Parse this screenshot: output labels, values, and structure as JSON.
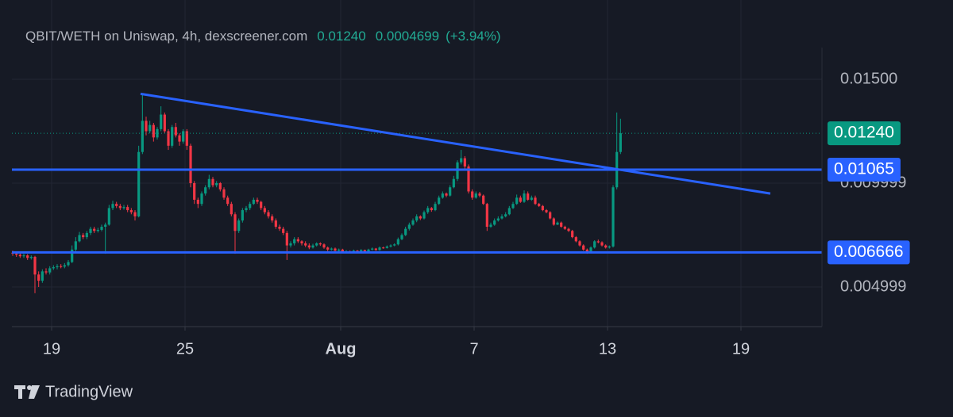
{
  "chart_data": {
    "type": "candlestick",
    "header": {
      "title": "QBIT/WETH on Uniswap, 4h, dexscreener.com",
      "change": "0.0004699",
      "change_pct": "(+3.94%)"
    },
    "last_price": {
      "value": 0.0124,
      "label": "0.01240"
    },
    "up_color": "#089981",
    "down_color": "#f23645",
    "line_color": "#2962ff",
    "grid": true,
    "xlim": [
      17.214,
      53.643
    ],
    "ylim": [
      0.003091,
      0.016527
    ],
    "xticks": [
      19,
      25,
      {
        "value": 32,
        "label": "Aug"
      },
      {
        "value": 38,
        "label": "7"
      },
      {
        "value": 44,
        "label": "13"
      },
      {
        "value": 50,
        "label": "19"
      }
    ],
    "yticks": [
      {
        "value": 0.015,
        "label": "0.01500"
      },
      0.009999,
      0.004999
    ],
    "hlines": [
      0.01065,
      0.006666
    ],
    "trendline": {
      "x": [
        23.0,
        51.32
      ],
      "y": [
        0.0143,
        0.0095
      ]
    },
    "x": [
      17.25,
      17.417,
      17.583,
      17.75,
      17.917,
      18.083,
      18.25,
      18.417,
      18.583,
      18.75,
      18.917,
      19.083,
      19.25,
      19.417,
      19.583,
      19.75,
      19.917,
      20.083,
      20.25,
      20.417,
      20.583,
      20.75,
      20.917,
      21.083,
      21.25,
      21.417,
      21.583,
      21.75,
      21.917,
      22.083,
      22.25,
      22.417,
      22.583,
      22.75,
      22.917,
      23.083,
      23.25,
      23.417,
      23.583,
      23.75,
      23.917,
      24.083,
      24.25,
      24.417,
      24.583,
      24.75,
      24.917,
      25.083,
      25.25,
      25.417,
      25.583,
      25.75,
      25.917,
      26.083,
      26.25,
      26.417,
      26.583,
      26.75,
      26.917,
      27.083,
      27.25,
      27.417,
      27.583,
      27.75,
      27.917,
      28.083,
      28.25,
      28.417,
      28.583,
      28.75,
      28.917,
      29.083,
      29.25,
      29.417,
      29.583,
      29.75,
      29.917,
      30.083,
      30.25,
      30.417,
      30.583,
      30.75,
      30.917,
      31.083,
      31.25,
      31.417,
      31.583,
      31.75,
      31.917,
      32.083,
      32.25,
      32.417,
      32.583,
      32.75,
      32.917,
      33.083,
      33.25,
      33.417,
      33.583,
      33.75,
      33.917,
      34.083,
      34.25,
      34.417,
      34.583,
      34.75,
      34.917,
      35.083,
      35.25,
      35.417,
      35.583,
      35.75,
      35.917,
      36.083,
      36.25,
      36.417,
      36.583,
      36.75,
      36.917,
      37.083,
      37.25,
      37.417,
      37.583,
      37.75,
      37.917,
      38.083,
      38.25,
      38.417,
      38.583,
      38.75,
      38.917,
      39.083,
      39.25,
      39.417,
      39.583,
      39.75,
      39.917,
      40.083,
      40.25,
      40.417,
      40.583,
      40.75,
      40.917,
      41.083,
      41.25,
      41.417,
      41.583,
      41.75,
      41.917,
      42.083,
      42.25,
      42.417,
      42.583,
      42.75,
      42.917,
      43.083,
      43.25,
      43.417,
      43.583,
      43.75,
      43.917,
      44.083,
      44.25,
      44.417,
      44.583
    ],
    "open": [
      0.00665,
      0.0066,
      0.00655,
      0.00648,
      0.00652,
      0.0064,
      0.00645,
      0.0056,
      0.0053,
      0.00575,
      0.0057,
      0.0059,
      0.00595,
      0.006,
      0.00598,
      0.00605,
      0.0062,
      0.0068,
      0.0072,
      0.0075,
      0.0074,
      0.0076,
      0.0078,
      0.0077,
      0.00775,
      0.0079,
      0.008,
      0.0088,
      0.009,
      0.0089,
      0.0088,
      0.00885,
      0.0087,
      0.0086,
      0.0084,
      0.0115,
      0.013,
      0.0125,
      0.0128,
      0.0122,
      0.0126,
      0.0133,
      0.0125,
      0.0118,
      0.0127,
      0.0123,
      0.012,
      0.0125,
      0.0118,
      0.01,
      0.0092,
      0.009,
      0.0095,
      0.0098,
      0.0102,
      0.0099,
      0.01,
      0.0097,
      0.0093,
      0.009,
      0.0085,
      0.0077,
      0.0082,
      0.0087,
      0.0088,
      0.009,
      0.0092,
      0.0091,
      0.0088,
      0.0086,
      0.0084,
      0.0082,
      0.0079,
      0.0078,
      0.0076,
      0.007,
      0.0071,
      0.0073,
      0.0072,
      0.0071,
      0.007,
      0.0069,
      0.007,
      0.0071,
      0.00705,
      0.0069,
      0.0068,
      0.00685,
      0.00675,
      0.0068,
      0.0067,
      0.00672,
      0.00668,
      0.00675,
      0.0067,
      0.00678,
      0.00672,
      0.0068,
      0.00685,
      0.00678,
      0.0069,
      0.00688,
      0.00695,
      0.007,
      0.00705,
      0.0073,
      0.0075,
      0.0078,
      0.008,
      0.0082,
      0.0084,
      0.0083,
      0.0086,
      0.0088,
      0.0087,
      0.009,
      0.0093,
      0.0095,
      0.0094,
      0.0098,
      0.0102,
      0.011,
      0.0112,
      0.0108,
      0.0096,
      0.0093,
      0.0095,
      0.0094,
      0.009,
      0.0079,
      0.008,
      0.0082,
      0.0083,
      0.0084,
      0.0085,
      0.0088,
      0.009,
      0.0093,
      0.0091,
      0.0095,
      0.0092,
      0.0093,
      0.009,
      0.0089,
      0.0087,
      0.0086,
      0.0083,
      0.008,
      0.0081,
      0.0079,
      0.0078,
      0.0077,
      0.0074,
      0.0072,
      0.007,
      0.0068,
      0.0067,
      0.0069,
      0.0072,
      0.00715,
      0.007,
      0.0069,
      0.00695,
      0.0098,
      0.0115
    ],
    "high": [
      0.00675,
      0.0067,
      0.00662,
      0.0066,
      0.00658,
      0.00652,
      0.0065,
      0.00575,
      0.00585,
      0.0059,
      0.006,
      0.00605,
      0.0061,
      0.0061,
      0.00615,
      0.0063,
      0.007,
      0.0074,
      0.00765,
      0.0076,
      0.0077,
      0.0079,
      0.0079,
      0.00785,
      0.008,
      0.0081,
      0.00895,
      0.00915,
      0.0091,
      0.009,
      0.00895,
      0.00895,
      0.0088,
      0.0087,
      0.0118,
      0.0143,
      0.0132,
      0.013,
      0.0129,
      0.0127,
      0.0137,
      0.0134,
      0.0126,
      0.0128,
      0.0129,
      0.0124,
      0.0126,
      0.0126,
      0.0119,
      0.0101,
      0.0093,
      0.0096,
      0.0099,
      0.0104,
      0.0103,
      0.0101,
      0.01005,
      0.0098,
      0.0094,
      0.0091,
      0.0086,
      0.0083,
      0.0088,
      0.0089,
      0.0091,
      0.0093,
      0.0093,
      0.00915,
      0.0089,
      0.0087,
      0.0085,
      0.0083,
      0.008,
      0.0079,
      0.0077,
      0.0072,
      0.0074,
      0.0074,
      0.00725,
      0.0072,
      0.0071,
      0.00708,
      0.00715,
      0.00715,
      0.0071,
      0.00695,
      0.0069,
      0.0069,
      0.00685,
      0.00684,
      0.00678,
      0.00676,
      0.0068,
      0.00678,
      0.00682,
      0.0068,
      0.00684,
      0.0069,
      0.00688,
      0.00695,
      0.00694,
      0.007,
      0.00705,
      0.0071,
      0.00738,
      0.00758,
      0.0079,
      0.0081,
      0.0083,
      0.0085,
      0.00845,
      0.00868,
      0.0089,
      0.00885,
      0.0091,
      0.0094,
      0.0096,
      0.00955,
      0.0099,
      0.01035,
      0.0111,
      0.0116,
      0.0113,
      0.0109,
      0.0097,
      0.0096,
      0.00958,
      0.00945,
      0.00905,
      0.0081,
      0.0083,
      0.0084,
      0.0085,
      0.0086,
      0.0089,
      0.0091,
      0.00945,
      0.0094,
      0.00965,
      0.0096,
      0.0094,
      0.0094,
      0.00905,
      0.00895,
      0.00875,
      0.00865,
      0.00835,
      0.00815,
      0.00815,
      0.00795,
      0.00785,
      0.00775,
      0.00745,
      0.00725,
      0.00705,
      0.00685,
      0.00695,
      0.00725,
      0.00728,
      0.0072,
      0.00705,
      0.007,
      0.0099,
      0.0134,
      0.0131
    ],
    "low": [
      0.0065,
      0.00645,
      0.0064,
      0.0064,
      0.0063,
      0.00632,
      0.0047,
      0.005,
      0.0052,
      0.0056,
      0.0056,
      0.00582,
      0.00585,
      0.0059,
      0.0059,
      0.00598,
      0.00615,
      0.0067,
      0.00715,
      0.0073,
      0.0073,
      0.0075,
      0.0076,
      0.00762,
      0.00768,
      0.0066,
      0.00795,
      0.0087,
      0.0088,
      0.0087,
      0.00872,
      0.0086,
      0.0085,
      0.0082,
      0.00835,
      0.0114,
      0.0123,
      0.0124,
      0.012,
      0.0121,
      0.0125,
      0.0124,
      0.0116,
      0.0117,
      0.0122,
      0.0118,
      0.0119,
      0.0116,
      0.0098,
      0.009,
      0.0088,
      0.0089,
      0.0094,
      0.0097,
      0.0098,
      0.0098,
      0.0096,
      0.0092,
      0.0089,
      0.0084,
      0.0066,
      0.0076,
      0.0081,
      0.0086,
      0.0087,
      0.00895,
      0.009,
      0.0087,
      0.0085,
      0.0083,
      0.0081,
      0.0078,
      0.0077,
      0.0075,
      0.0063,
      0.0069,
      0.007,
      0.00712,
      0.007,
      0.00692,
      0.00682,
      0.00685,
      0.00695,
      0.00698,
      0.00684,
      0.00672,
      0.00675,
      0.00668,
      0.0067,
      0.00664,
      0.00665,
      0.00664,
      0.00664,
      0.00665,
      0.00666,
      0.00668,
      0.00668,
      0.00676,
      0.00674,
      0.00675,
      0.00684,
      0.00685,
      0.0069,
      0.00696,
      0.007,
      0.00725,
      0.00745,
      0.00772,
      0.00795,
      0.00812,
      0.00822,
      0.00825,
      0.00852,
      0.00862,
      0.00865,
      0.00895,
      0.00925,
      0.00932,
      0.00935,
      0.00975,
      0.0101,
      0.0109,
      0.0107,
      0.0095,
      0.0092,
      0.00925,
      0.00932,
      0.00895,
      0.0077,
      0.00785,
      0.00795,
      0.00815,
      0.00825,
      0.00835,
      0.00845,
      0.00875,
      0.00895,
      0.00905,
      0.00905,
      0.00915,
      0.00915,
      0.00895,
      0.00885,
      0.00865,
      0.00855,
      0.00825,
      0.00795,
      0.00798,
      0.00785,
      0.00775,
      0.00765,
      0.00735,
      0.00715,
      0.00695,
      0.00675,
      0.0066,
      0.00665,
      0.00685,
      0.0071,
      0.00695,
      0.00685,
      0.00685,
      0.0069,
      0.0097,
      0.0114
    ],
    "close": [
      0.0066,
      0.00655,
      0.00648,
      0.00652,
      0.0064,
      0.00645,
      0.0056,
      0.0053,
      0.00575,
      0.0057,
      0.0059,
      0.00595,
      0.006,
      0.00598,
      0.00605,
      0.0062,
      0.0068,
      0.0072,
      0.0075,
      0.0074,
      0.0076,
      0.0078,
      0.0077,
      0.00775,
      0.0079,
      0.008,
      0.0088,
      0.009,
      0.0089,
      0.0088,
      0.00885,
      0.0087,
      0.0086,
      0.0084,
      0.0115,
      0.013,
      0.0125,
      0.0128,
      0.0122,
      0.0126,
      0.0133,
      0.0125,
      0.0118,
      0.0127,
      0.0123,
      0.012,
      0.0125,
      0.0118,
      0.01,
      0.0092,
      0.009,
      0.0095,
      0.0098,
      0.0102,
      0.0099,
      0.01,
      0.0097,
      0.0093,
      0.009,
      0.0085,
      0.0077,
      0.0082,
      0.0087,
      0.0088,
      0.009,
      0.0092,
      0.0091,
      0.0088,
      0.0086,
      0.0084,
      0.0082,
      0.0079,
      0.0078,
      0.0076,
      0.007,
      0.0071,
      0.0073,
      0.0072,
      0.0071,
      0.007,
      0.0069,
      0.007,
      0.0071,
      0.00705,
      0.0069,
      0.0068,
      0.00685,
      0.00675,
      0.0068,
      0.0067,
      0.00672,
      0.00668,
      0.00675,
      0.0067,
      0.00678,
      0.00672,
      0.0068,
      0.00685,
      0.00678,
      0.0069,
      0.00688,
      0.00695,
      0.007,
      0.00705,
      0.0073,
      0.0075,
      0.0078,
      0.008,
      0.0082,
      0.0084,
      0.0083,
      0.0086,
      0.0088,
      0.0087,
      0.009,
      0.0093,
      0.0095,
      0.0094,
      0.0098,
      0.0102,
      0.011,
      0.0112,
      0.0108,
      0.0096,
      0.0093,
      0.0095,
      0.0094,
      0.009,
      0.0079,
      0.008,
      0.0082,
      0.0083,
      0.0084,
      0.0085,
      0.0088,
      0.009,
      0.0093,
      0.0091,
      0.0095,
      0.0092,
      0.0093,
      0.009,
      0.0089,
      0.0087,
      0.0086,
      0.0083,
      0.008,
      0.0081,
      0.0079,
      0.0078,
      0.0077,
      0.0074,
      0.0072,
      0.007,
      0.0068,
      0.0067,
      0.0069,
      0.0072,
      0.00715,
      0.007,
      0.0069,
      0.00695,
      0.0098,
      0.0115,
      0.0124
    ]
  },
  "brand": "TradingView"
}
